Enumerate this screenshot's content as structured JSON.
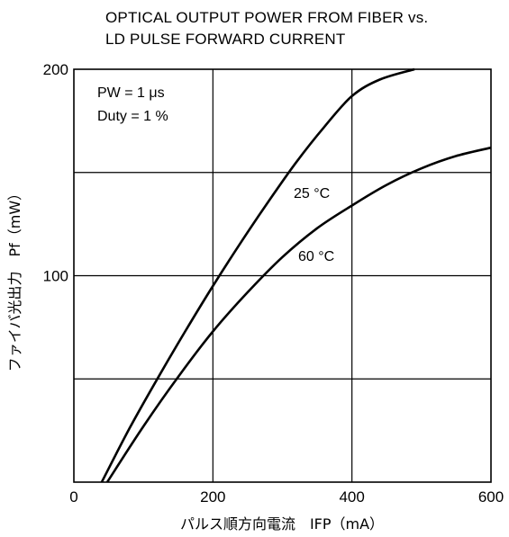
{
  "chart_data": {
    "type": "line",
    "title_line1": "OPTICAL OUTPUT POWER FROM FIBER vs.",
    "title_line2": "LD PULSE FORWARD CURRENT",
    "xlabel": "パルス順方向電流　IFP（mA）",
    "ylabel": "ファイバ光出力　Pf（mW）",
    "xlim": [
      0,
      600
    ],
    "ylim": [
      0,
      200
    ],
    "x_ticks": [
      "0",
      "200",
      "400",
      "600"
    ],
    "y_ticks": [
      "100",
      "200"
    ],
    "grid": true,
    "conditions": [
      "PW = 1 μs",
      "Duty = 1 %"
    ],
    "series": [
      {
        "name": "25 °C",
        "x": [
          40,
          80,
          120,
          160,
          200,
          240,
          280,
          320,
          360,
          400,
          440,
          490
        ],
        "y": [
          0,
          26,
          50,
          73,
          95,
          116,
          136,
          155,
          172,
          187,
          195,
          200
        ]
      },
      {
        "name": "60 °C",
        "x": [
          48,
          100,
          150,
          200,
          250,
          300,
          350,
          400,
          450,
          500,
          550,
          600
        ],
        "y": [
          0,
          27,
          51,
          73,
          92,
          109,
          123,
          134,
          144,
          152,
          158,
          162
        ]
      }
    ]
  }
}
